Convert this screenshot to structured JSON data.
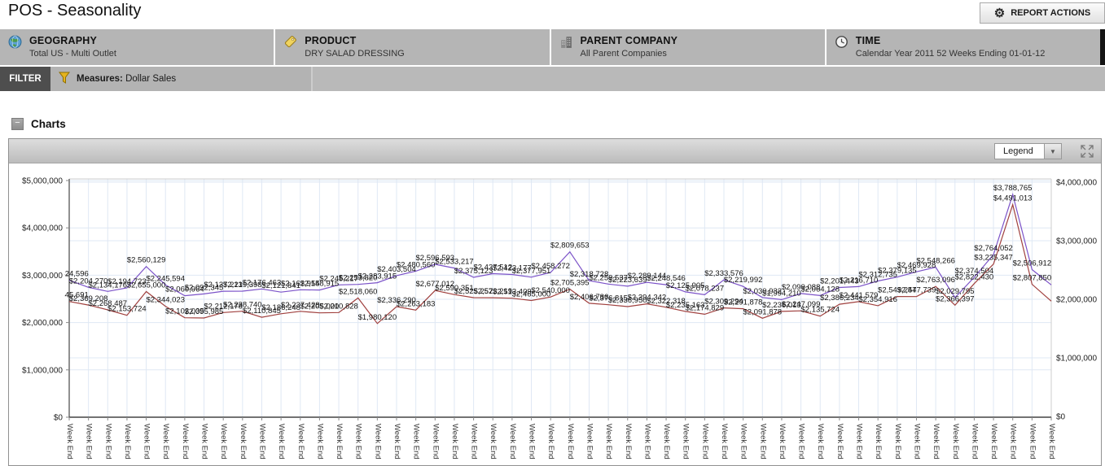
{
  "header": {
    "title": "POS - Seasonality",
    "report_actions_label": "REPORT ACTIONS"
  },
  "icons": {
    "gear": "⚙",
    "collapse": "−",
    "dropdown_arrow": "▼"
  },
  "context_bar": [
    {
      "icon": "globe-icon",
      "label": "GEOGRAPHY",
      "value": "Total US - Multi Outlet"
    },
    {
      "icon": "tag-icon",
      "label": "PRODUCT",
      "value": "DRY SALAD DRESSING"
    },
    {
      "icon": "building-icon",
      "label": "PARENT COMPANY",
      "value": "All Parent Companies"
    },
    {
      "icon": "clock-icon",
      "label": "TIME",
      "value": "Calendar Year 2011 52 Weeks Ending 01-01-12"
    }
  ],
  "filter_bar": {
    "tab_label": "FILTER",
    "measures_label": "Measures:",
    "measures_value": "Dollar Sales"
  },
  "charts_section": {
    "title": "Charts",
    "legend_label": "Legend"
  },
  "chart_data": {
    "type": "line",
    "title": "",
    "num_points": 52,
    "x_tick_label": "Week End",
    "grid": true,
    "legend_position": "collapsed-dropdown",
    "show_last_point_label": false,
    "y_axis_left": {
      "min": 0,
      "max": 5000000,
      "tick_step": 1000000,
      "labels": [
        "$0",
        "$1,000,000",
        "$2,000,000",
        "$3,000,000",
        "$4,000,000",
        "$5,000,000"
      ]
    },
    "y_axis_right": {
      "min": 0,
      "max": 4000000,
      "tick_step": 1000000,
      "labels": [
        "$0",
        "$1,000,000",
        "$2,000,000",
        "$3,000,000",
        "$4,000,000"
      ]
    },
    "series": [
      {
        "name": "purple-series",
        "color": "#7B52C8",
        "axis": "right",
        "values": [
          2324596,
          2204270,
          2134176,
          2194723,
          2560129,
          2245594,
          2060964,
          2092345,
          2137221,
          2139398,
          2176463,
          2121841,
          2162954,
          2158915,
          2245217,
          2253820,
          2283915,
          2403504,
          2480560,
          2596593,
          2533217,
          2375123,
          2437512,
          2423177,
          2377951,
          2458272,
          2809653,
          2318728,
          2259537,
          2223639,
          2289144,
          2248546,
          2125905,
          2078237,
          2333576,
          2219992,
          2030932,
          1994210,
          2099088,
          2064128,
          2201443,
          2216710,
          2312735,
          2379135,
          2469928,
          2548266,
          2029795,
          2374504,
          2764052,
          3788765,
          2506912,
          2246000
        ]
      },
      {
        "name": "red-series",
        "color": "#A0403E",
        "axis": "left",
        "values": [
          2445691,
          2369208,
          2268487,
          2153724,
          2655000,
          2344023,
          2102035,
          2095985,
          2212178,
          2238740,
          2110845,
          2186248,
          2237428,
          2205000,
          2210828,
          2518060,
          1980120,
          2336290,
          2263183,
          2677012,
          2590351,
          2525257,
          2523219,
          2513409,
          2465000,
          2540000,
          2705395,
          2406786,
          2376815,
          2336950,
          2394342,
          2322318,
          2235163,
          2174829,
          2309294,
          2291878,
          2091878,
          2236013,
          2247099,
          2135724,
          2386234,
          2441579,
          2354916,
          2549247,
          2547739,
          2763096,
          2366397,
          2822430,
          3235347,
          4491013,
          2807850,
          2452000
        ]
      }
    ]
  }
}
